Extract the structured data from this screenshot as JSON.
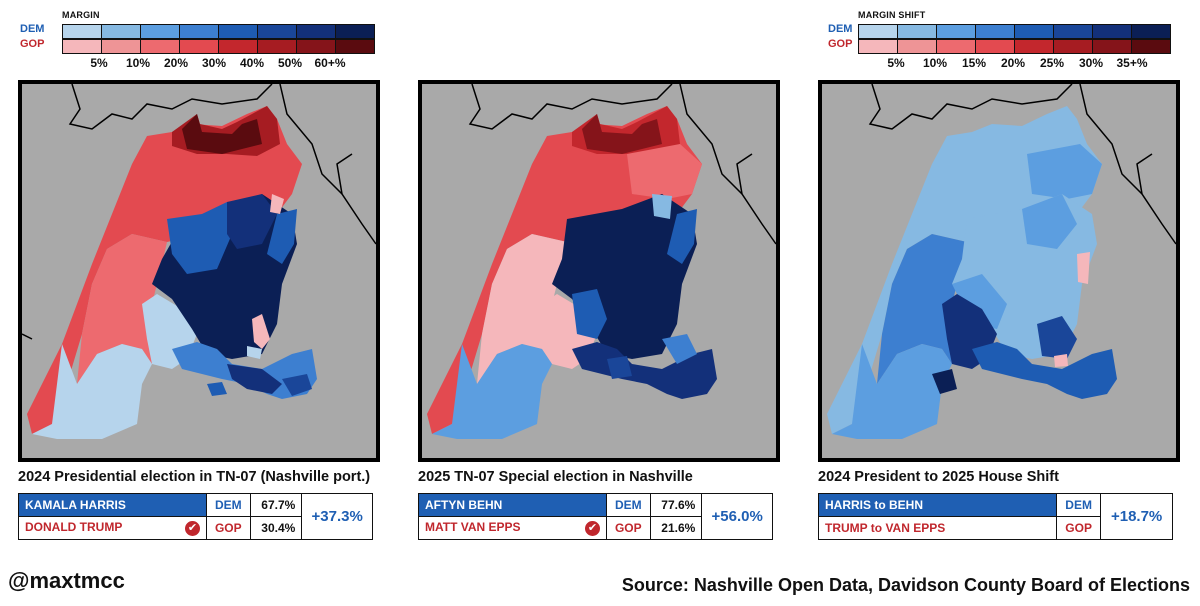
{
  "legend_margin": {
    "title": "MARGIN",
    "dem_label": "DEM",
    "gop_label": "GOP",
    "dem_colors": [
      "#b6d4ec",
      "#86b9e2",
      "#5c9ee0",
      "#3d7fd0",
      "#1e5cb3",
      "#1a4699",
      "#13307a",
      "#0b1f55"
    ],
    "gop_colors": [
      "#f5b7bb",
      "#ee9496",
      "#ed6a6f",
      "#e34a50",
      "#c3272d",
      "#a61c22",
      "#85141a",
      "#5a0b0f"
    ],
    "ticks": [
      "5%",
      "10%",
      "20%",
      "30%",
      "40%",
      "50%",
      "60+%"
    ]
  },
  "legend_shift": {
    "title": "MARGIN SHIFT",
    "dem_label": "DEM",
    "gop_label": "GOP",
    "dem_colors": [
      "#b6d4ec",
      "#86b9e2",
      "#5c9ee0",
      "#3d7fd0",
      "#1e5cb3",
      "#1a4699",
      "#13307a",
      "#0b1f55"
    ],
    "gop_colors": [
      "#f5b7bb",
      "#ee9496",
      "#ed6a6f",
      "#e34a50",
      "#c3272d",
      "#a61c22",
      "#85141a",
      "#5a0b0f"
    ],
    "ticks": [
      "5%",
      "10%",
      "15%",
      "20%",
      "25%",
      "30%",
      "35+%"
    ]
  },
  "panels": [
    {
      "title": "2024 Presidential election in TN-07 (Nashville port.)",
      "dem_candidate": "KAMALA HARRIS",
      "gop_candidate": "DONALD TRUMP",
      "dem_party": "DEM",
      "gop_party": "GOP",
      "dem_pct": "67.7%",
      "gop_pct": "30.4%",
      "margin": "+37.3%",
      "winner": "gop"
    },
    {
      "title": "2025 TN-07 Special election in Nashville",
      "dem_candidate": "AFTYN BEHN",
      "gop_candidate": "MATT VAN EPPS",
      "dem_party": "DEM",
      "gop_party": "GOP",
      "dem_pct": "77.6%",
      "gop_pct": "21.6%",
      "margin": "+56.0%",
      "winner": "gop"
    },
    {
      "title": "2024 President to 2025 House Shift",
      "dem_candidate": "HARRIS to BEHN",
      "gop_candidate": "TRUMP to VAN EPPS",
      "dem_party": "DEM",
      "gop_party": "GOP",
      "margin": "+18.7%"
    }
  ],
  "footer": {
    "handle": "@maxtmcc",
    "source": "Source: Nashville Open Data, Davidson County Board of Elections"
  },
  "colors": {
    "map_bg": "#a9a9a9",
    "dem_blue": "#1f5fb3",
    "gop_red": "#c0272d"
  }
}
